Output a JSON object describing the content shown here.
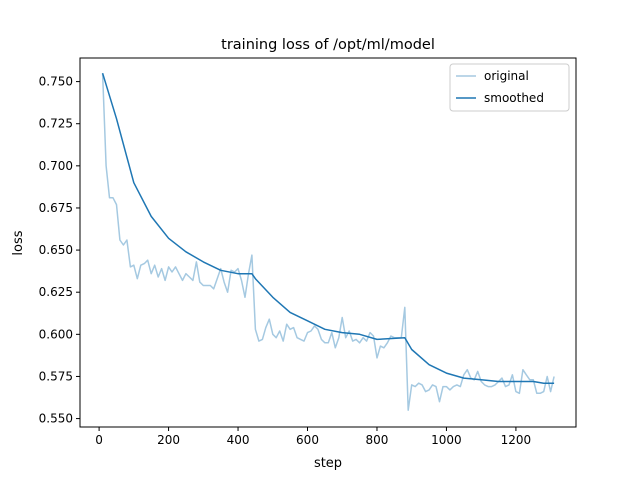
{
  "chart_data": {
    "type": "line",
    "title": "training loss of /opt/ml/model",
    "xlabel": "step",
    "ylabel": "loss",
    "xlim": [
      -55,
      1373
    ],
    "ylim": [
      0.545,
      0.764
    ],
    "xticks": [
      0,
      200,
      400,
      600,
      800,
      1000,
      1200
    ],
    "yticks": [
      0.55,
      0.575,
      0.6,
      0.625,
      0.65,
      0.675,
      0.7,
      0.725,
      0.75
    ],
    "grid": false,
    "legend": "upper-right",
    "series": [
      {
        "name": "original",
        "color": "#1f77b4",
        "alpha": 0.4,
        "x_start": 10,
        "x_step": 10,
        "values": [
          0.755,
          0.7,
          0.681,
          0.681,
          0.677,
          0.656,
          0.653,
          0.656,
          0.64,
          0.641,
          0.633,
          0.641,
          0.642,
          0.644,
          0.636,
          0.641,
          0.634,
          0.639,
          0.632,
          0.64,
          0.637,
          0.64,
          0.636,
          0.632,
          0.636,
          0.634,
          0.632,
          0.643,
          0.631,
          0.629,
          0.629,
          0.629,
          0.627,
          0.633,
          0.639,
          0.631,
          0.625,
          0.638,
          0.637,
          0.639,
          0.632,
          0.622,
          0.636,
          0.647,
          0.603,
          0.596,
          0.597,
          0.604,
          0.609,
          0.6,
          0.598,
          0.602,
          0.596,
          0.606,
          0.603,
          0.604,
          0.598,
          0.597,
          0.596,
          0.601,
          0.602,
          0.605,
          0.603,
          0.597,
          0.595,
          0.595,
          0.601,
          0.592,
          0.598,
          0.61,
          0.598,
          0.602,
          0.596,
          0.597,
          0.595,
          0.598,
          0.596,
          0.601,
          0.599,
          0.586,
          0.593,
          0.592,
          0.595,
          0.599,
          0.598,
          0.598,
          0.598,
          0.616,
          0.555,
          0.57,
          0.569,
          0.571,
          0.57,
          0.566,
          0.567,
          0.57,
          0.569,
          0.56,
          0.569,
          0.569,
          0.567,
          0.569,
          0.57,
          0.569,
          0.576,
          0.579,
          0.574,
          0.573,
          0.578,
          0.572,
          0.57,
          0.569,
          0.569,
          0.57,
          0.572,
          0.574,
          0.569,
          0.57,
          0.576,
          0.566,
          0.565,
          0.579,
          0.576,
          0.573,
          0.573,
          0.565,
          0.565,
          0.566,
          0.575,
          0.566,
          0.575
        ]
      },
      {
        "name": "smoothed",
        "color": "#1f77b4",
        "alpha": 1,
        "x": [
          10,
          50,
          100,
          150,
          200,
          250,
          300,
          350,
          400,
          440,
          450,
          500,
          550,
          600,
          650,
          700,
          750,
          800,
          880,
          900,
          950,
          1000,
          1050,
          1100,
          1150,
          1200,
          1250,
          1280,
          1310
        ],
        "values": [
          0.755,
          0.728,
          0.69,
          0.67,
          0.657,
          0.649,
          0.643,
          0.638,
          0.636,
          0.636,
          0.633,
          0.622,
          0.613,
          0.608,
          0.603,
          0.601,
          0.6,
          0.597,
          0.598,
          0.591,
          0.582,
          0.577,
          0.574,
          0.573,
          0.572,
          0.572,
          0.572,
          0.571,
          0.571
        ]
      }
    ]
  }
}
